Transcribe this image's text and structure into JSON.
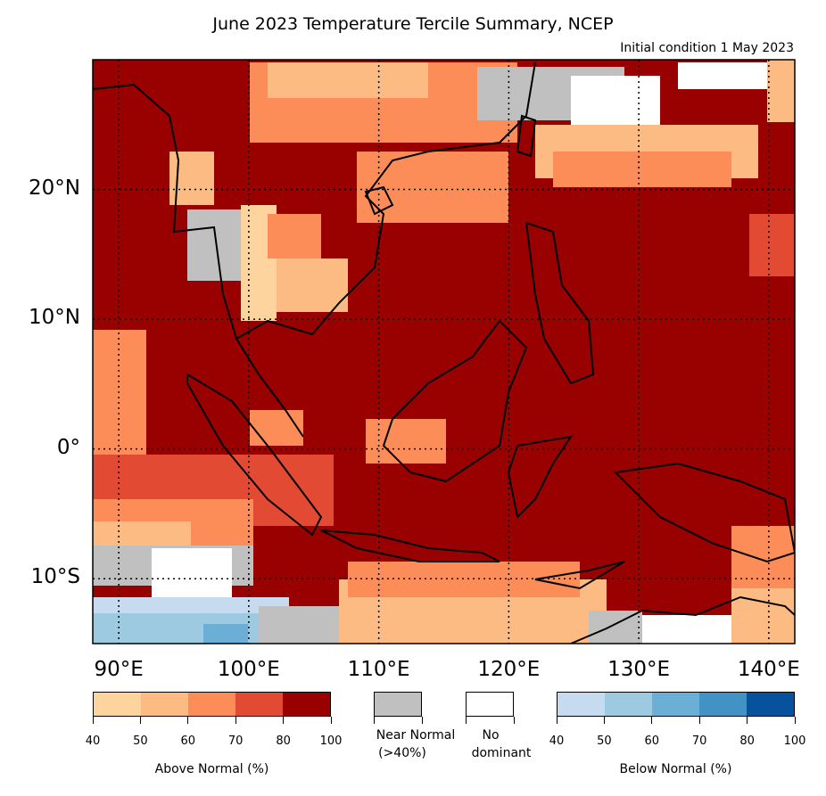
{
  "title": "June 2023 Temperature Tercile Summary, NCEP",
  "subtitle": "Initial condition 1 May 2023",
  "map": {
    "extent": {
      "lon": [
        88,
        142
      ],
      "lat": [
        -15,
        30
      ]
    },
    "latitude_labels": [
      {
        "value": 20,
        "text": "20°N"
      },
      {
        "value": 10,
        "text": "10°N"
      },
      {
        "value": 0,
        "text": "0°"
      },
      {
        "value": -10,
        "text": "10°S"
      }
    ],
    "longitude_labels": [
      {
        "value": 90,
        "text": "90°E"
      },
      {
        "value": 100,
        "text": "100°E"
      },
      {
        "value": 110,
        "text": "110°E"
      },
      {
        "value": 120,
        "text": "120°E"
      },
      {
        "value": 130,
        "text": "130°E"
      },
      {
        "value": 140,
        "text": "140°E"
      }
    ],
    "gridlines": "dotted"
  },
  "legend": {
    "above_normal": {
      "colors": [
        "#fdd49e",
        "#fdbb84",
        "#fc8d59",
        "#e34a33",
        "#990000"
      ],
      "ticks": [
        "40",
        "50",
        "60",
        "70",
        "80",
        "100"
      ],
      "label": "Above Normal (%)"
    },
    "near_normal": {
      "color": "#c0c0c0",
      "line1": "Near Normal",
      "line2": "(>40%)"
    },
    "no_dominant": {
      "color": "#ffffff",
      "line1": "No",
      "line2": "dominant"
    },
    "below_normal": {
      "colors": [
        "#c6dbef",
        "#9ecae1",
        "#6baed6",
        "#4292c6",
        "#08519c"
      ],
      "ticks": [
        "40",
        "50",
        "60",
        "70",
        "80",
        "100"
      ],
      "label": "Below Normal (%)"
    }
  }
}
